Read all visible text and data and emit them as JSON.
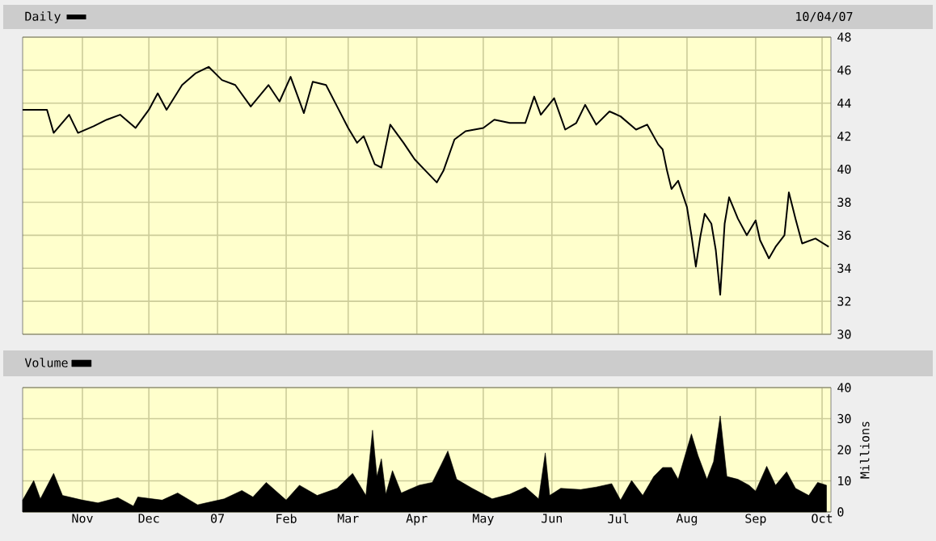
{
  "chart_data": [
    {
      "type": "line",
      "subtitle": "10/04/07",
      "legend": "top left",
      "grid": true,
      "tick_labels": "y",
      "xlim": [
        "2006-10-05",
        "2007-10-05"
      ],
      "xticks": [
        {
          "value": "2006-11-01",
          "label": null
        },
        {
          "value": "2006-12-01",
          "label": null
        },
        {
          "value": "2007-01-01",
          "label": null
        },
        {
          "value": "2007-02-01",
          "label": null
        },
        {
          "value": "2007-03-01",
          "label": null
        },
        {
          "value": "2007-04-01",
          "label": null
        },
        {
          "value": "2007-05-01",
          "label": null
        },
        {
          "value": "2007-06-01",
          "label": null
        },
        {
          "value": "2007-07-01",
          "label": null
        },
        {
          "value": "2007-08-01",
          "label": null
        },
        {
          "value": "2007-09-01",
          "label": null
        },
        {
          "value": "2007-10-01",
          "label": null
        }
      ],
      "ylim": [
        30,
        48
      ],
      "yticks": [
        30,
        32,
        34,
        36,
        38,
        40,
        42,
        44,
        46,
        48
      ],
      "series": [
        {
          "name": "Daily",
          "color": "#000000",
          "x": [
            "2006-10-05",
            "2006-10-16",
            "2006-10-19",
            "2006-10-26",
            "2006-10-30",
            "2006-11-06",
            "2006-11-12",
            "2006-11-18",
            "2006-11-25",
            "2006-12-01",
            "2006-12-05",
            "2006-12-09",
            "2006-12-16",
            "2006-12-22",
            "2006-12-28",
            "2007-01-03",
            "2007-01-09",
            "2007-01-16",
            "2007-01-24",
            "2007-01-29",
            "2007-02-03",
            "2007-02-09",
            "2007-02-13",
            "2007-02-19",
            "2007-02-24",
            "2007-03-01",
            "2007-03-05",
            "2007-03-08",
            "2007-03-13",
            "2007-03-16",
            "2007-03-20",
            "2007-03-26",
            "2007-03-31",
            "2007-04-05",
            "2007-04-10",
            "2007-04-13",
            "2007-04-18",
            "2007-04-23",
            "2007-05-01",
            "2007-05-06",
            "2007-05-13",
            "2007-05-20",
            "2007-05-24",
            "2007-05-27",
            "2007-06-02",
            "2007-06-07",
            "2007-06-12",
            "2007-06-16",
            "2007-06-21",
            "2007-06-27",
            "2007-07-02",
            "2007-07-09",
            "2007-07-14",
            "2007-07-19",
            "2007-07-21",
            "2007-07-23",
            "2007-07-25",
            "2007-07-28",
            "2007-08-01",
            "2007-08-03",
            "2007-08-05",
            "2007-08-07",
            "2007-08-09",
            "2007-08-12",
            "2007-08-14",
            "2007-08-16",
            "2007-08-18",
            "2007-08-20",
            "2007-08-24",
            "2007-08-28",
            "2007-09-01",
            "2007-09-03",
            "2007-09-07",
            "2007-09-10",
            "2007-09-14",
            "2007-09-16",
            "2007-09-19",
            "2007-09-22",
            "2007-09-28",
            "2007-10-04"
          ],
          "values": [
            43.6,
            43.6,
            42.2,
            43.3,
            42.2,
            42.6,
            43.0,
            43.3,
            42.5,
            43.6,
            44.6,
            43.6,
            45.1,
            45.8,
            46.2,
            45.4,
            45.1,
            43.8,
            45.1,
            44.1,
            45.6,
            43.4,
            45.3,
            45.1,
            43.8,
            42.5,
            41.6,
            42.0,
            40.3,
            40.1,
            42.7,
            41.6,
            40.6,
            39.9,
            39.2,
            39.9,
            41.8,
            42.3,
            42.5,
            43.0,
            42.8,
            42.8,
            44.4,
            43.3,
            44.3,
            42.4,
            42.8,
            43.9,
            42.7,
            43.5,
            43.2,
            42.4,
            42.7,
            41.5,
            41.2,
            39.9,
            38.8,
            39.3,
            37.7,
            36.0,
            34.1,
            35.9,
            37.3,
            36.7,
            35.1,
            32.4,
            36.7,
            38.3,
            37.0,
            36.0,
            36.9,
            35.7,
            34.6,
            35.3,
            36.0,
            38.6,
            37.0,
            35.5,
            35.8,
            35.3
          ]
        }
      ]
    },
    {
      "type": "area",
      "ylabel": "Millions",
      "legend": "top left",
      "grid": true,
      "xlim": [
        "2006-10-05",
        "2007-10-05"
      ],
      "xticks": [
        {
          "value": "2006-11-01",
          "label": "Nov"
        },
        {
          "value": "2006-12-01",
          "label": "Dec"
        },
        {
          "value": "2007-01-01",
          "label": "07"
        },
        {
          "value": "2007-02-01",
          "label": "Feb"
        },
        {
          "value": "2007-03-01",
          "label": "Mar"
        },
        {
          "value": "2007-04-01",
          "label": "Apr"
        },
        {
          "value": "2007-05-01",
          "label": "May"
        },
        {
          "value": "2007-06-01",
          "label": "Jun"
        },
        {
          "value": "2007-07-01",
          "label": "Jul"
        },
        {
          "value": "2007-08-01",
          "label": "Aug"
        },
        {
          "value": "2007-09-01",
          "label": "Sep"
        },
        {
          "value": "2007-10-01",
          "label": "Oct"
        }
      ],
      "ylim": [
        0,
        40
      ],
      "yticks": [
        0,
        10,
        20,
        30,
        40
      ],
      "series": [
        {
          "name": "Volume",
          "color": "#000000",
          "x": [
            "2006-10-05",
            "2006-10-10",
            "2006-10-13",
            "2006-10-19",
            "2006-10-23",
            "2006-11-01",
            "2006-11-08",
            "2006-11-17",
            "2006-11-24",
            "2006-11-26",
            "2006-12-07",
            "2006-12-14",
            "2006-12-23",
            "2007-01-04",
            "2007-01-12",
            "2007-01-17",
            "2007-01-23",
            "2007-02-01",
            "2007-02-07",
            "2007-02-15",
            "2007-02-24",
            "2007-03-03",
            "2007-03-09",
            "2007-03-12",
            "2007-03-14",
            "2007-03-16",
            "2007-03-18",
            "2007-03-21",
            "2007-03-25",
            "2007-04-02",
            "2007-04-08",
            "2007-04-12",
            "2007-04-15",
            "2007-04-19",
            "2007-04-26",
            "2007-05-05",
            "2007-05-13",
            "2007-05-20",
            "2007-05-26",
            "2007-05-29",
            "2007-05-31",
            "2007-06-05",
            "2007-06-14",
            "2007-06-21",
            "2007-06-28",
            "2007-07-02",
            "2007-07-07",
            "2007-07-12",
            "2007-07-17",
            "2007-07-21",
            "2007-07-25",
            "2007-07-28",
            "2007-08-03",
            "2007-08-06",
            "2007-08-10",
            "2007-08-13",
            "2007-08-16",
            "2007-08-19",
            "2007-08-24",
            "2007-08-29",
            "2007-09-01",
            "2007-09-06",
            "2007-09-10",
            "2007-09-15",
            "2007-09-19",
            "2007-09-25",
            "2007-09-29",
            "2007-10-03"
          ],
          "values": [
            3.8,
            10.1,
            4.2,
            12.4,
            5.3,
            3.8,
            2.9,
            4.6,
            1.9,
            4.8,
            3.8,
            6.1,
            2.3,
            4.2,
            6.9,
            4.8,
            9.5,
            3.8,
            8.6,
            5.3,
            7.6,
            12.4,
            5.3,
            26.3,
            11.4,
            17.1,
            5.7,
            13.3,
            6.1,
            8.6,
            9.5,
            15.2,
            19.6,
            10.5,
            7.6,
            4.2,
            5.7,
            8.0,
            4.2,
            19.0,
            5.3,
            7.6,
            7.2,
            8.0,
            9.1,
            3.8,
            10.1,
            5.3,
            11.4,
            14.3,
            14.3,
            10.5,
            25.1,
            18.1,
            10.5,
            16.2,
            30.9,
            11.4,
            10.5,
            8.6,
            6.7,
            14.7,
            8.6,
            12.9,
            7.6,
            5.3,
            9.5,
            8.6
          ]
        }
      ]
    }
  ]
}
